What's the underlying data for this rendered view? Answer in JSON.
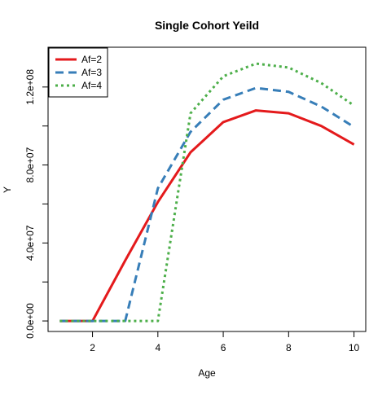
{
  "chart_data": {
    "type": "line",
    "title": "Single Cohort Yeild",
    "xlabel": "Age",
    "ylabel": "Y",
    "xlim": [
      0.64,
      10.36
    ],
    "ylim": [
      -5400000,
      140400000
    ],
    "x_ticks": [
      2,
      4,
      6,
      8,
      10
    ],
    "x_tick_labels": [
      "2",
      "4",
      "6",
      "8",
      "10"
    ],
    "y_ticks": [
      0,
      20000000,
      40000000,
      60000000,
      80000000,
      100000000,
      120000000
    ],
    "y_tick_labels": [
      {
        "value": 0,
        "label": "0.0e+00"
      },
      {
        "value": 40000000,
        "label": "4.0e+07"
      },
      {
        "value": 80000000,
        "label": "8.0e+07"
      },
      {
        "value": 120000000,
        "label": "1.2e+08"
      }
    ],
    "legend_position": "top-left",
    "grid": false,
    "x": [
      1,
      2,
      3,
      4,
      5,
      6,
      7,
      8,
      9,
      10
    ],
    "series": [
      {
        "name": "Af=2",
        "color": "#e41a1c",
        "dash": "solid",
        "values": [
          0,
          0,
          31000000,
          61000000,
          86500000,
          102000000,
          108000000,
          106500000,
          100000000,
          90500000
        ]
      },
      {
        "name": "Af=3",
        "color": "#377eb8",
        "dash": "dashed",
        "values": [
          0,
          0,
          0,
          68000000,
          97000000,
          113500000,
          119500000,
          117500000,
          110000000,
          99500000
        ]
      },
      {
        "name": "Af=4",
        "color": "#4daf4a",
        "dash": "dotted",
        "values": [
          0,
          0,
          0,
          0,
          106500000,
          125500000,
          132000000,
          130000000,
          122000000,
          110500000
        ]
      }
    ]
  }
}
